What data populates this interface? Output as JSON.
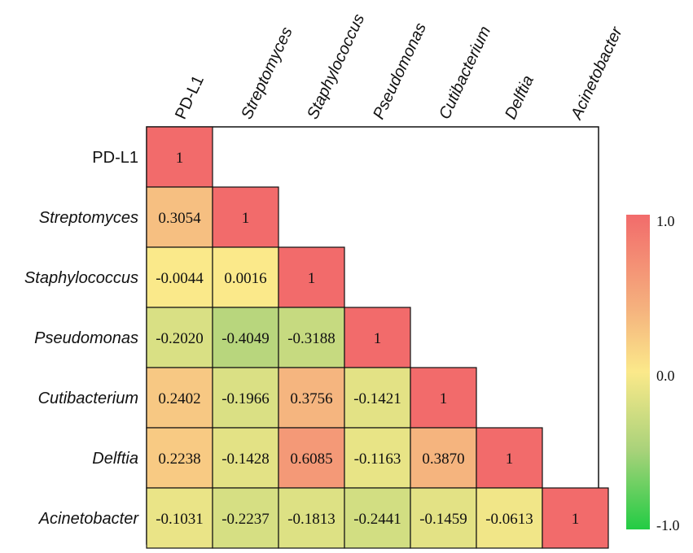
{
  "chart_data": {
    "type": "heatmap",
    "title": "",
    "variables": [
      "PD-L1",
      "Streptomyces",
      "Staphylococcus",
      "Pseudomonas",
      "Cutibacterium",
      "Delftia",
      "Acinetobacter"
    ],
    "italic_variables": [
      false,
      true,
      true,
      true,
      true,
      true,
      true
    ],
    "matrix": [
      [
        "1"
      ],
      [
        "0.3054",
        "1"
      ],
      [
        "-0.0044",
        "0.0016",
        "1"
      ],
      [
        "-0.2020",
        "-0.4049",
        "-0.3188",
        "1"
      ],
      [
        "0.2402",
        "-0.1966",
        "0.3756",
        "-0.1421",
        "1"
      ],
      [
        "0.2238",
        "-0.1428",
        "0.6085",
        "-0.1163",
        "0.3870",
        "1"
      ],
      [
        "-0.1031",
        "-0.2237",
        "-0.1813",
        "-0.2441",
        "-0.1459",
        "-0.0613",
        "1"
      ]
    ],
    "colorbar": {
      "range": [
        -1.0,
        1.0
      ],
      "tick_labels": [
        "1.0",
        "0.0",
        "-1.0"
      ],
      "colors": {
        "low": "#22cc44",
        "mid": "#fbe98a",
        "high": "#f26b6b"
      }
    },
    "layout": "lower-triangle"
  }
}
